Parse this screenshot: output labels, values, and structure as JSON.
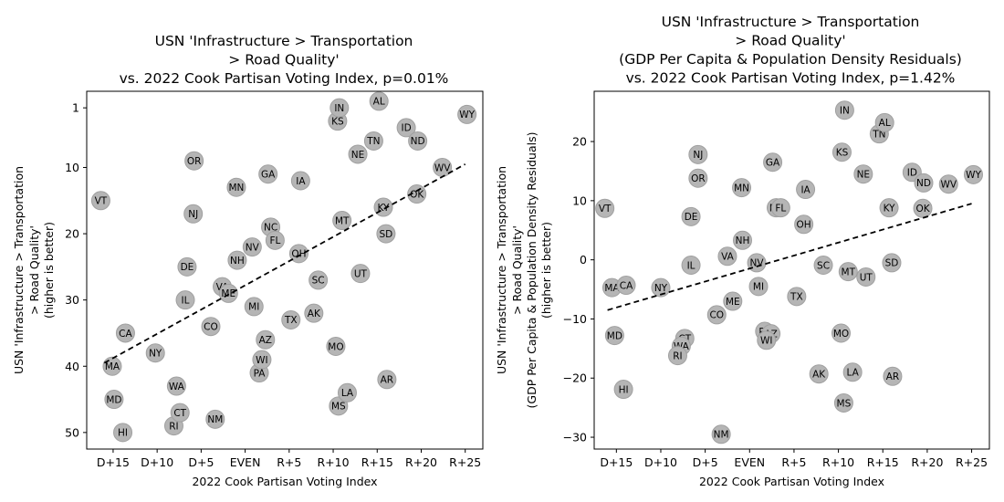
{
  "chart_data": [
    {
      "type": "scatter",
      "title_lines": [
        "USN 'Infrastructure > Transportation",
        "> Road Quality'",
        "vs. 2022 Cook Partisan Voting Index, p=0.01%"
      ],
      "xlabel": "2022 Cook Partisan Voting Index",
      "ylabel_lines": [
        "USN 'Infrastructure > Transportation",
        "> Road Quality'",
        "(higher is better)"
      ],
      "xlim": [
        -18,
        27
      ],
      "ylim": [
        52.5,
        -1.5
      ],
      "y_inverted": true,
      "xticks": [
        {
          "v": -15,
          "label": "D+15"
        },
        {
          "v": -10,
          "label": "D+10"
        },
        {
          "v": -5,
          "label": "D+5"
        },
        {
          "v": 0,
          "label": "EVEN"
        },
        {
          "v": 5,
          "label": "R+5"
        },
        {
          "v": 10,
          "label": "R+10"
        },
        {
          "v": 15,
          "label": "R+15"
        },
        {
          "v": 20,
          "label": "R+20"
        },
        {
          "v": 25,
          "label": "R+25"
        }
      ],
      "yticks": [
        {
          "v": 1,
          "label": "1"
        },
        {
          "v": 10,
          "label": "10"
        },
        {
          "v": 20,
          "label": "20"
        },
        {
          "v": 30,
          "label": "30"
        },
        {
          "v": 40,
          "label": "40"
        },
        {
          "v": 50,
          "label": "50"
        }
      ],
      "trendline": {
        "x": [
          -16,
          25
        ],
        "y": [
          39.5,
          9.5
        ]
      },
      "points": [
        {
          "label": "VT",
          "x": -16.4,
          "y": 15
        },
        {
          "label": "MA",
          "x": -15.1,
          "y": 40
        },
        {
          "label": "MD",
          "x": -14.9,
          "y": 45
        },
        {
          "label": "CA",
          "x": -13.6,
          "y": 35
        },
        {
          "label": "HI",
          "x": -13.9,
          "y": 50
        },
        {
          "label": "NY",
          "x": -10.2,
          "y": 38
        },
        {
          "label": "WA",
          "x": -7.8,
          "y": 43
        },
        {
          "label": "RI",
          "x": -8.1,
          "y": 49
        },
        {
          "label": "CT",
          "x": -7.4,
          "y": 47
        },
        {
          "label": "DE",
          "x": -6.6,
          "y": 25
        },
        {
          "label": "IL",
          "x": -6.8,
          "y": 30
        },
        {
          "label": "NJ",
          "x": -5.9,
          "y": 17
        },
        {
          "label": "OR",
          "x": -5.8,
          "y": 9
        },
        {
          "label": "CO",
          "x": -3.9,
          "y": 34
        },
        {
          "label": "NM",
          "x": -3.4,
          "y": 48
        },
        {
          "label": "VA",
          "x": -2.6,
          "y": 28
        },
        {
          "label": "ME",
          "x": -1.9,
          "y": 29
        },
        {
          "label": "MN",
          "x": -1.0,
          "y": 13
        },
        {
          "label": "NH",
          "x": -0.9,
          "y": 24
        },
        {
          "label": "NV",
          "x": 0.8,
          "y": 22
        },
        {
          "label": "MI",
          "x": 1.0,
          "y": 31
        },
        {
          "label": "PA",
          "x": 1.6,
          "y": 41
        },
        {
          "label": "WI",
          "x": 1.9,
          "y": 39
        },
        {
          "label": "AZ",
          "x": 2.3,
          "y": 36
        },
        {
          "label": "GA",
          "x": 2.6,
          "y": 11
        },
        {
          "label": "NC",
          "x": 2.9,
          "y": 19
        },
        {
          "label": "FL",
          "x": 3.4,
          "y": 21
        },
        {
          "label": "TX",
          "x": 5.2,
          "y": 33
        },
        {
          "label": "OH",
          "x": 6.1,
          "y": 23
        },
        {
          "label": "IA",
          "x": 6.3,
          "y": 12
        },
        {
          "label": "AK",
          "x": 7.8,
          "y": 32
        },
        {
          "label": "SC",
          "x": 8.3,
          "y": 27
        },
        {
          "label": "MO",
          "x": 10.3,
          "y": 37
        },
        {
          "label": "MS",
          "x": 10.6,
          "y": 46
        },
        {
          "label": "KS",
          "x": 10.5,
          "y": 3
        },
        {
          "label": "IN",
          "x": 10.7,
          "y": 1
        },
        {
          "label": "MT",
          "x": 11.0,
          "y": 18
        },
        {
          "label": "LA",
          "x": 11.6,
          "y": 44
        },
        {
          "label": "NE",
          "x": 12.8,
          "y": 8
        },
        {
          "label": "UT",
          "x": 13.1,
          "y": 26
        },
        {
          "label": "TN",
          "x": 14.6,
          "y": 6
        },
        {
          "label": "AL",
          "x": 15.2,
          "y": 0
        },
        {
          "label": "KY",
          "x": 15.7,
          "y": 16
        },
        {
          "label": "SD",
          "x": 16.0,
          "y": 20
        },
        {
          "label": "AR",
          "x": 16.1,
          "y": 42
        },
        {
          "label": "ID",
          "x": 18.3,
          "y": 4
        },
        {
          "label": "ND",
          "x": 19.6,
          "y": 6
        },
        {
          "label": "OK",
          "x": 19.5,
          "y": 14
        },
        {
          "label": "WV",
          "x": 22.4,
          "y": 10
        },
        {
          "label": "WY",
          "x": 25.2,
          "y": 2
        }
      ]
    },
    {
      "type": "scatter",
      "title_lines": [
        "USN 'Infrastructure > Transportation",
        "> Road Quality'",
        "(GDP Per Capita & Population Density Residuals)",
        "vs. 2022 Cook Partisan Voting Index, p=1.42%"
      ],
      "xlabel": "2022 Cook Partisan Voting Index",
      "ylabel_lines": [
        "USN 'Infrastructure > Transportation",
        "> Road Quality'",
        "(GDP Per Capita & Population Density Residuals)",
        "(higher is better)"
      ],
      "xlim": [
        -17.5,
        27
      ],
      "ylim": [
        -32,
        28.5
      ],
      "y_inverted": false,
      "xticks": [
        {
          "v": -15,
          "label": "D+15"
        },
        {
          "v": -10,
          "label": "D+10"
        },
        {
          "v": -5,
          "label": "D+5"
        },
        {
          "v": 0,
          "label": "EVEN"
        },
        {
          "v": 5,
          "label": "R+5"
        },
        {
          "v": 10,
          "label": "R+10"
        },
        {
          "v": 15,
          "label": "R+15"
        },
        {
          "v": 20,
          "label": "R+20"
        },
        {
          "v": 25,
          "label": "R+25"
        }
      ],
      "yticks": [
        {
          "v": -30,
          "label": "−30"
        },
        {
          "v": -20,
          "label": "−20"
        },
        {
          "v": -10,
          "label": "−10"
        },
        {
          "v": 0,
          "label": "0"
        },
        {
          "v": 10,
          "label": "10"
        },
        {
          "v": 20,
          "label": "20"
        }
      ],
      "trendline": {
        "x": [
          -16,
          25
        ],
        "y": [
          -8.5,
          9.5
        ]
      },
      "points": [
        {
          "label": "VT",
          "x": -16.3,
          "y": 8.7
        },
        {
          "label": "MA",
          "x": -15.5,
          "y": -4.7
        },
        {
          "label": "CA",
          "x": -13.9,
          "y": -4.3
        },
        {
          "label": "MD",
          "x": -15.2,
          "y": -12.8
        },
        {
          "label": "HI",
          "x": -14.2,
          "y": -21.9
        },
        {
          "label": "NY",
          "x": -10.0,
          "y": -4.7
        },
        {
          "label": "IL",
          "x": -6.6,
          "y": -0.9
        },
        {
          "label": "DE",
          "x": -6.6,
          "y": 7.3
        },
        {
          "label": "NJ",
          "x": -5.8,
          "y": 17.8
        },
        {
          "label": "OR",
          "x": -5.8,
          "y": 13.8
        },
        {
          "label": "CT",
          "x": -7.3,
          "y": -13.3
        },
        {
          "label": "WA",
          "x": -7.7,
          "y": -14.6
        },
        {
          "label": "RI",
          "x": -8.1,
          "y": -16.2
        },
        {
          "label": "CO",
          "x": -3.7,
          "y": -9.3
        },
        {
          "label": "NM",
          "x": -3.2,
          "y": -29.5
        },
        {
          "label": "VA",
          "x": -2.5,
          "y": 0.6
        },
        {
          "label": "ME",
          "x": -1.9,
          "y": -7.0
        },
        {
          "label": "MN",
          "x": -0.9,
          "y": 12.2
        },
        {
          "label": "NH",
          "x": -0.8,
          "y": 3.3
        },
        {
          "label": "NV",
          "x": 0.8,
          "y": -0.5
        },
        {
          "label": "MI",
          "x": 1.0,
          "y": -4.5
        },
        {
          "label": "PA",
          "x": 1.7,
          "y": -12.1
        },
        {
          "label": "AZ",
          "x": 2.4,
          "y": -12.5
        },
        {
          "label": "WI",
          "x": 1.9,
          "y": -13.6
        },
        {
          "label": "GA",
          "x": 2.6,
          "y": 16.5
        },
        {
          "label": "NC",
          "x": 3.0,
          "y": 8.8
        },
        {
          "label": "FL",
          "x": 3.5,
          "y": 8.8
        },
        {
          "label": "TX",
          "x": 5.3,
          "y": -6.2
        },
        {
          "label": "OH",
          "x": 6.1,
          "y": 6.0
        },
        {
          "label": "IA",
          "x": 6.3,
          "y": 11.9
        },
        {
          "label": "AK",
          "x": 7.8,
          "y": -19.3
        },
        {
          "label": "SC",
          "x": 8.3,
          "y": -0.9
        },
        {
          "label": "MO",
          "x": 10.3,
          "y": -12.4
        },
        {
          "label": "MS",
          "x": 10.6,
          "y": -24.2
        },
        {
          "label": "KS",
          "x": 10.4,
          "y": 18.2
        },
        {
          "label": "IN",
          "x": 10.7,
          "y": 25.3
        },
        {
          "label": "MT",
          "x": 11.1,
          "y": -2.0
        },
        {
          "label": "LA",
          "x": 11.6,
          "y": -19.0
        },
        {
          "label": "NE",
          "x": 12.8,
          "y": 14.5
        },
        {
          "label": "UT",
          "x": 13.1,
          "y": -2.9
        },
        {
          "label": "TN",
          "x": 14.6,
          "y": 21.3
        },
        {
          "label": "AL",
          "x": 15.2,
          "y": 23.2
        },
        {
          "label": "KY",
          "x": 15.7,
          "y": 8.8
        },
        {
          "label": "SD",
          "x": 16.0,
          "y": -0.5
        },
        {
          "label": "AR",
          "x": 16.1,
          "y": -19.7
        },
        {
          "label": "ID",
          "x": 18.3,
          "y": 14.8
        },
        {
          "label": "ND",
          "x": 19.6,
          "y": 13.0
        },
        {
          "label": "OK",
          "x": 19.5,
          "y": 8.7
        },
        {
          "label": "WV",
          "x": 22.4,
          "y": 12.8
        },
        {
          "label": "WY",
          "x": 25.2,
          "y": 14.4
        }
      ]
    }
  ]
}
